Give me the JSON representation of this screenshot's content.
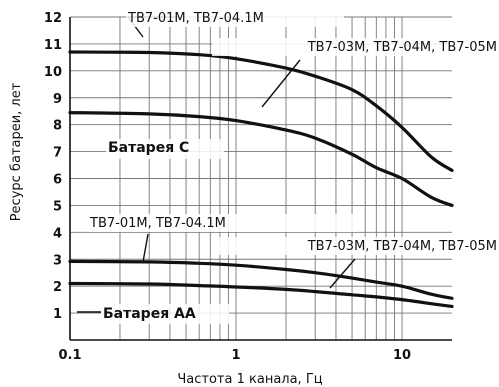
{
  "chart_data": {
    "type": "line",
    "title": "",
    "xlabel": "Частота 1 канала, Гц",
    "ylabel": "Ресурс батареи, лет",
    "xscale": "log",
    "xlim": [
      0.1,
      20
    ],
    "ylim": [
      0,
      12
    ],
    "grid": true,
    "x_ticks": [
      0.1,
      1,
      10
    ],
    "x_tick_labels": [
      "0.1",
      "1",
      "10"
    ],
    "y_ticks": [
      1,
      2,
      3,
      4,
      5,
      6,
      7,
      8,
      9,
      10,
      11,
      12
    ],
    "y_tick_labels": [
      "1",
      "2",
      "3",
      "4",
      "5",
      "6",
      "7",
      "8",
      "9",
      "10",
      "11",
      "12"
    ],
    "series": [
      {
        "x": [
          0.1,
          0.3,
          0.6,
          1,
          2,
          3,
          5,
          7,
          10,
          15,
          20
        ],
        "values": [
          10.7,
          10.68,
          10.6,
          10.45,
          10.1,
          9.8,
          9.3,
          8.7,
          7.9,
          6.8,
          6.3
        ]
      },
      {
        "x": [
          0.1,
          0.3,
          0.6,
          1,
          2,
          3,
          5,
          7,
          10,
          15,
          20
        ],
        "values": [
          8.45,
          8.4,
          8.3,
          8.15,
          7.8,
          7.5,
          6.9,
          6.4,
          6.0,
          5.3,
          5.0
        ]
      },
      {
        "x": [
          0.1,
          0.3,
          0.6,
          1,
          2,
          3,
          5,
          7,
          10,
          15,
          20
        ],
        "values": [
          2.92,
          2.9,
          2.85,
          2.78,
          2.62,
          2.5,
          2.3,
          2.15,
          2.0,
          1.7,
          1.55
        ]
      },
      {
        "x": [
          0.1,
          0.3,
          0.6,
          1,
          2,
          3,
          5,
          7,
          10,
          15,
          20
        ],
        "values": [
          2.1,
          2.08,
          2.02,
          1.97,
          1.88,
          1.8,
          1.68,
          1.6,
          1.5,
          1.35,
          1.25
        ]
      }
    ],
    "annotations": [
      {
        "text": "ТВ7-01М, ТВ7-04.1М",
        "style": "normal"
      },
      {
        "text": "ТВ7-03М, ТВ7-04М, ТВ7-05М",
        "style": "normal"
      },
      {
        "text": "Батарея С",
        "style": "bold"
      },
      {
        "text": "ТВ7-01М, ТВ7-04.1М",
        "style": "normal"
      },
      {
        "text": "ТВ7-03М, ТВ7-04М, ТВ7-05М",
        "style": "normal"
      },
      {
        "text": "Батарея АА",
        "style": "bold"
      }
    ]
  }
}
